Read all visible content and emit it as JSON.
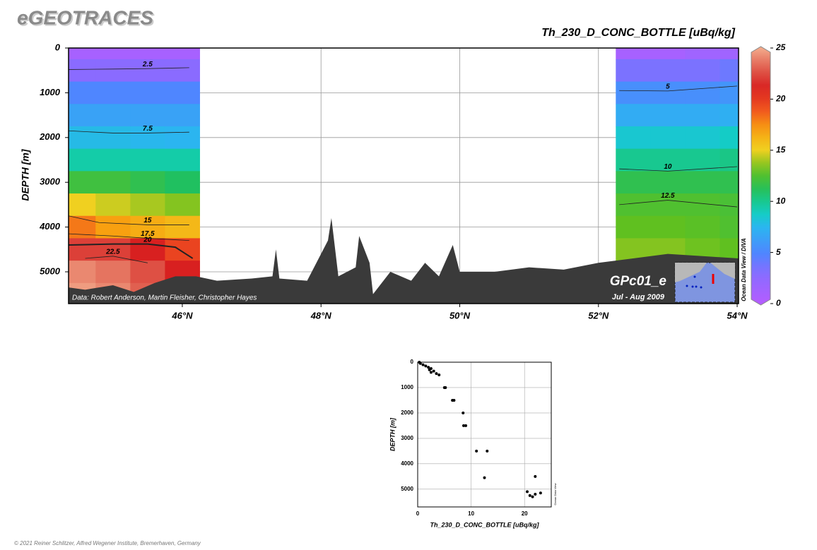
{
  "header": {
    "title": "eGEOTRACES"
  },
  "footer": "© 2021 Reiner Schlitzer, Alfred Wegener Institute, Bremerhaven, Germany",
  "chart_data": [
    {
      "type": "section",
      "title": "Th_230_D_CONC_BOTTLE [uBq/kg]",
      "ylabel": "DEPTH [m]",
      "xlim": [
        44.36,
        54.02
      ],
      "ylim": [
        0,
        5710
      ],
      "y_inverted": true,
      "grid": true,
      "xticks": [
        {
          "value": 46,
          "label": "46°N"
        },
        {
          "value": 48,
          "label": "48°N"
        },
        {
          "value": 50,
          "label": "50°N"
        },
        {
          "value": 52,
          "label": "52°N"
        },
        {
          "value": 54,
          "label": "54°N"
        }
      ],
      "yticks": [
        0,
        1000,
        2000,
        3000,
        4000,
        5000
      ],
      "depths": [
        0,
        500,
        1000,
        1500,
        2000,
        2500,
        3000,
        3500,
        4000,
        4500,
        5000,
        5500
      ],
      "stations": [
        {
          "lat": 44.5,
          "values": [
            1,
            3,
            5,
            6.5,
            7.8,
            9.5,
            12,
            15,
            18,
            22,
            24,
            24.5
          ]
        },
        {
          "lat": 45.0,
          "values": [
            1,
            3,
            5,
            6.5,
            7.8,
            9.5,
            12,
            14.5,
            17,
            22,
            23.5,
            24
          ]
        },
        {
          "lat": 45.5,
          "values": [
            1,
            3,
            5,
            6.5,
            7.6,
            9.5,
            11.5,
            14,
            16.5,
            21,
            22.5,
            23
          ]
        },
        {
          "lat": 46.0,
          "values": [
            1,
            3,
            5,
            6.5,
            7.5,
            9.5,
            11,
            13.5,
            16,
            19.5,
            21,
            21
          ]
        },
        {
          "lat": 52.5,
          "values": [
            1,
            3.5,
            5.5,
            7,
            8.5,
            10,
            11.5,
            12.5,
            13,
            13.5,
            null,
            null
          ]
        },
        {
          "lat": 53.0,
          "values": [
            1,
            3.5,
            5.5,
            7,
            8.5,
            10,
            11.5,
            12.5,
            13,
            13.5,
            null,
            null
          ]
        },
        {
          "lat": 53.5,
          "values": [
            1.5,
            3.5,
            5.5,
            7,
            8.5,
            10,
            11.5,
            12.5,
            12.8,
            13.2,
            null,
            null
          ]
        },
        {
          "lat": 54.0,
          "values": [
            1.5,
            4,
            5.8,
            7.2,
            8.8,
            10.2,
            11.5,
            12.3,
            12.5,
            13,
            null,
            null
          ]
        }
      ],
      "contours": [
        {
          "level": 2.5,
          "lat": [
            44.36,
            45.0,
            45.5,
            46.1
          ],
          "depth": [
            480,
            470,
            460,
            440
          ]
        },
        {
          "level": 7.5,
          "lat": [
            44.36,
            45.0,
            45.5,
            46.1
          ],
          "depth": [
            1850,
            1900,
            1900,
            1880
          ]
        },
        {
          "level": 15,
          "lat": [
            44.36,
            44.8,
            45.5,
            46.1
          ],
          "depth": [
            3750,
            3900,
            3950,
            3950
          ]
        },
        {
          "level": 17.5,
          "lat": [
            44.36,
            45.0,
            45.5,
            46.1
          ],
          "depth": [
            4150,
            4200,
            4250,
            4300
          ]
        },
        {
          "level": 20,
          "lat": [
            44.36,
            45.0,
            45.5,
            45.9,
            46.15
          ],
          "depth": [
            4400,
            4380,
            4380,
            4450,
            4700
          ]
        },
        {
          "level": 22.5,
          "lat": [
            44.6,
            45.0,
            45.5
          ],
          "depth": [
            4700,
            4650,
            4800
          ]
        },
        {
          "level": 5,
          "lat": [
            52.3,
            53.0,
            54.0
          ],
          "depth": [
            950,
            960,
            850
          ]
        },
        {
          "level": 10,
          "lat": [
            52.3,
            53.0,
            54.0
          ],
          "depth": [
            2700,
            2750,
            2650
          ]
        },
        {
          "level": 12.5,
          "lat": [
            52.3,
            53.0,
            54.0
          ],
          "depth": [
            3500,
            3400,
            3550
          ]
        }
      ],
      "bottom": {
        "lat": [
          44.36,
          44.6,
          45.0,
          45.3,
          45.6,
          45.9,
          46.2,
          46.5,
          47.0,
          47.3,
          47.35,
          47.4,
          47.8,
          48.1,
          48.15,
          48.25,
          48.5,
          48.55,
          48.7,
          48.75,
          49.0,
          49.3,
          49.5,
          49.7,
          49.9,
          50.0,
          50.5,
          51.0,
          51.5,
          52.0,
          52.5,
          53.0,
          53.5,
          54.02
        ],
        "depth": [
          5350,
          5400,
          5300,
          5450,
          5250,
          5100,
          5100,
          5200,
          5150,
          5100,
          4500,
          5150,
          5200,
          4300,
          3800,
          5100,
          4900,
          4200,
          4800,
          5500,
          5000,
          5200,
          4800,
          5100,
          4400,
          5000,
          5000,
          4900,
          4950,
          4800,
          4700,
          4600,
          4650,
          4700
        ]
      },
      "colorbar": {
        "lim": [
          0,
          25
        ],
        "ticks": [
          0,
          5,
          10,
          15,
          20,
          25
        ]
      },
      "credit": "Data: Robert Anderson, Martin Fleisher, Christopher Hayes",
      "cruise": "GPc01_e",
      "period": "Jul - Aug 2009",
      "software": "Ocean Data View / DIVA"
    },
    {
      "type": "scatter",
      "xlabel": "Th_230_D_CONC_BOTTLE [uBq/kg]",
      "ylabel": "DEPTH [m]",
      "xlim": [
        0,
        25
      ],
      "ylim": [
        0,
        5700
      ],
      "y_inverted": true,
      "grid": true,
      "color": "#000000",
      "xticks": [
        0,
        10,
        20
      ],
      "yticks": [
        0,
        1000,
        2000,
        3000,
        4000,
        5000
      ],
      "x": [
        0.3,
        0.5,
        1,
        1.5,
        2,
        2.5,
        2.2,
        3,
        2.5,
        3.5,
        4,
        5,
        5.2,
        6.5,
        6.8,
        8.5,
        8.6,
        9,
        11,
        13,
        12.5,
        22,
        20.5,
        21,
        21.5,
        22,
        23
      ],
      "y": [
        0,
        50,
        100,
        150,
        200,
        250,
        300,
        350,
        400,
        450,
        500,
        1000,
        1000,
        1500,
        1500,
        2000,
        2500,
        2500,
        3500,
        3500,
        4550,
        4500,
        5100,
        5250,
        5300,
        5200,
        5150
      ],
      "software": "Ocean Data View"
    }
  ]
}
